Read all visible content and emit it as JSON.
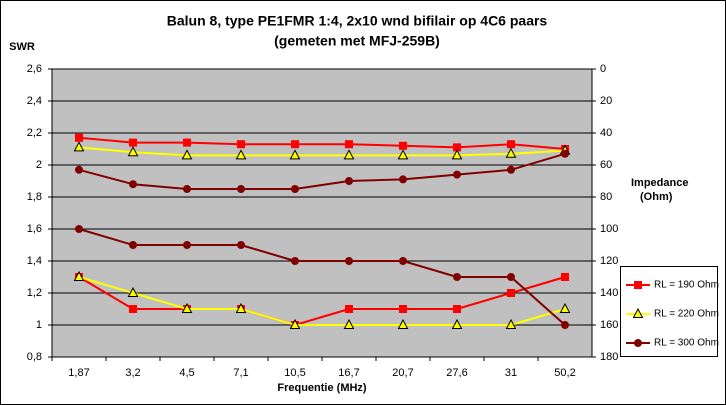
{
  "chart_data": {
    "type": "line",
    "title": "Balun 8, type PE1FMR 1:4, 2x10 wnd bifilair op 4C6 paars",
    "subtitle": "(gemeten met MFJ-259B)",
    "y_label": "SWR",
    "y2_label": [
      "Impedance",
      "(Ohm)"
    ],
    "x_label": "Frequentie (MHz)",
    "categories": [
      "1,87",
      "3,2",
      "4,5",
      "7,1",
      "10,5",
      "16,7",
      "20,7",
      "27,6",
      "31",
      "50,2"
    ],
    "ylim": [
      0.8,
      2.6
    ],
    "yticks": [
      {
        "value": 0.8,
        "label": "0,8"
      },
      1,
      {
        "value": 1.2,
        "label": "1,2"
      },
      {
        "value": 1.4,
        "label": "1,4"
      },
      {
        "value": 1.6,
        "label": "1,6"
      },
      {
        "value": 1.8,
        "label": "1,8"
      },
      2,
      {
        "value": 2.2,
        "label": "2,2"
      },
      {
        "value": 2.4,
        "label": "2,4"
      },
      {
        "value": 2.6,
        "label": "2,6"
      }
    ],
    "y2lim": [
      180,
      0
    ],
    "y2ticks": [
      0,
      20,
      40,
      60,
      80,
      100,
      120,
      140,
      160,
      180
    ],
    "grid": true,
    "legend": "right",
    "series": [
      {
        "name": "RL = 190 Ohm",
        "color": "#ff0000",
        "marker": "square",
        "values": [
          1.3,
          1.1,
          1.1,
          1.1,
          1.0,
          1.1,
          1.1,
          1.1,
          1.2,
          1.3
        ],
        "y2_values": [
          43,
          46,
          46,
          47,
          47,
          47,
          48,
          49,
          47,
          50
        ]
      },
      {
        "name": "RL = 220 Ohm",
        "color": "#ffff00",
        "marker": "triangle",
        "values": [
          1.3,
          1.2,
          1.1,
          1.1,
          1.0,
          1.0,
          1.0,
          1.0,
          1.0,
          1.1
        ],
        "y2_values": [
          49,
          52,
          54,
          54,
          54,
          54,
          54,
          54,
          53,
          51
        ]
      },
      {
        "name": "RL = 300 Ohm",
        "color": "#800000",
        "marker": "circle",
        "values": [
          1.6,
          1.5,
          1.5,
          1.5,
          1.4,
          1.4,
          1.4,
          1.3,
          1.3,
          1.0
        ],
        "y2_values": [
          63,
          72,
          75,
          75,
          75,
          70,
          69,
          66,
          63,
          53
        ]
      }
    ]
  }
}
